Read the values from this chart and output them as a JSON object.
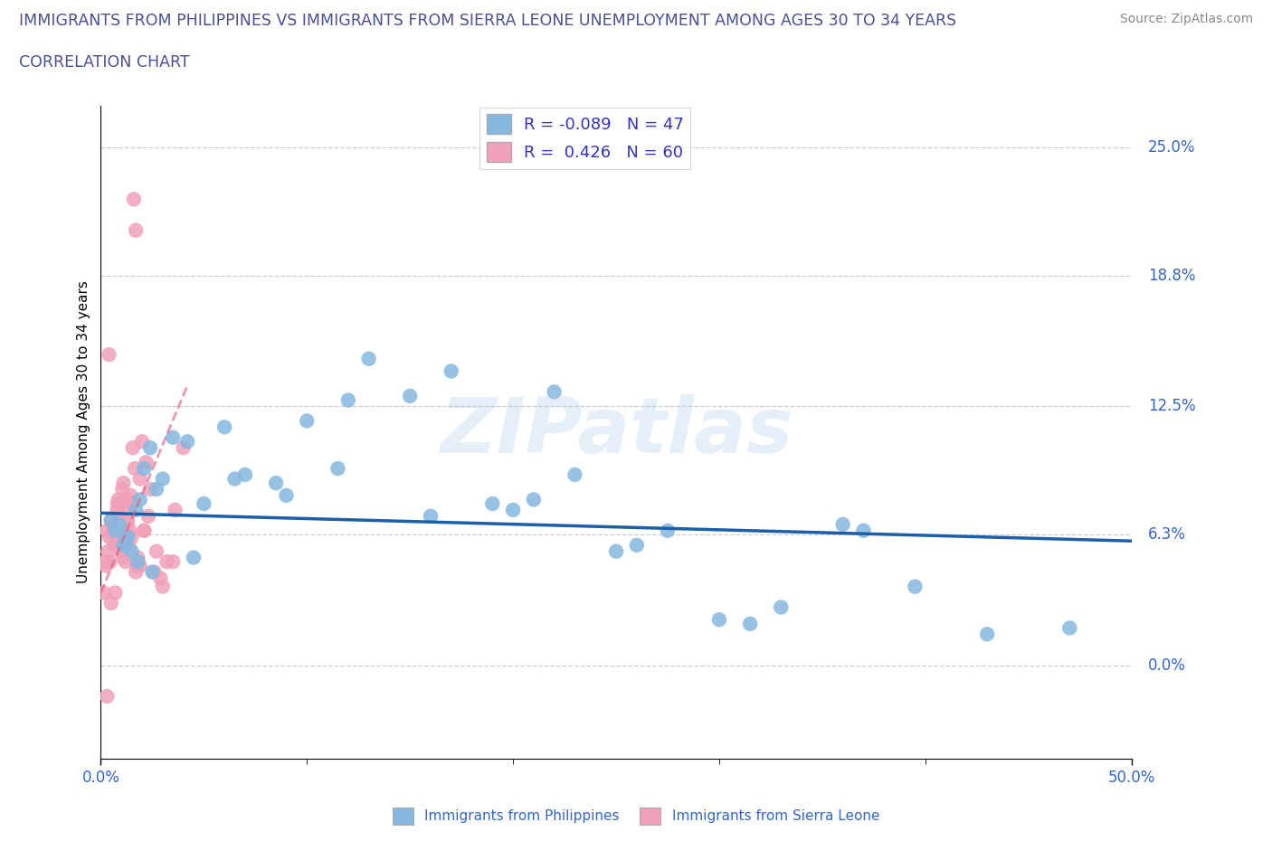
{
  "title_line1": "IMMIGRANTS FROM PHILIPPINES VS IMMIGRANTS FROM SIERRA LEONE UNEMPLOYMENT AMONG AGES 30 TO 34 YEARS",
  "title_line2": "CORRELATION CHART",
  "title_color": "#4a5090",
  "source_text": "Source: ZipAtlas.com",
  "yaxis_labels": [
    "0.0%",
    "6.3%",
    "12.5%",
    "18.8%",
    "25.0%"
  ],
  "yaxis_values": [
    0.0,
    6.3,
    12.5,
    18.8,
    25.0
  ],
  "xmin": 0.0,
  "xmax": 50.0,
  "ymin": -4.5,
  "ymax": 27.0,
  "ylabel": "Unemployment Among Ages 30 to 34 years",
  "legend_label1": "Immigrants from Philippines",
  "legend_label2": "Immigrants from Sierra Leone",
  "r1": -0.089,
  "n1": 47,
  "r2": 0.426,
  "n2": 60,
  "color_blue": "#85b8e0",
  "color_pink": "#f0a0b8",
  "color_blue_line": "#1a5fa8",
  "color_pink_line": "#e06080",
  "watermark": "ZIPatlas",
  "philippines_x": [
    0.5,
    0.7,
    0.9,
    1.1,
    1.3,
    1.5,
    1.7,
    1.9,
    2.1,
    2.4,
    2.7,
    3.0,
    3.5,
    4.2,
    5.0,
    6.0,
    7.0,
    8.5,
    10.0,
    11.5,
    13.0,
    15.0,
    17.0,
    19.0,
    21.0,
    23.0,
    25.0,
    27.5,
    30.0,
    33.0,
    36.0,
    39.5,
    43.0,
    47.0,
    1.2,
    1.8,
    2.5,
    4.5,
    6.5,
    9.0,
    12.0,
    16.0,
    20.0,
    26.0,
    31.5,
    37.0,
    22.0
  ],
  "philippines_y": [
    7.0,
    6.5,
    6.8,
    5.8,
    6.2,
    5.5,
    7.5,
    8.0,
    9.5,
    10.5,
    8.5,
    9.0,
    11.0,
    10.8,
    7.8,
    11.5,
    9.2,
    8.8,
    11.8,
    9.5,
    14.8,
    13.0,
    14.2,
    7.8,
    8.0,
    9.2,
    5.5,
    6.5,
    2.2,
    2.8,
    6.8,
    3.8,
    1.5,
    1.8,
    6.0,
    5.0,
    4.5,
    5.2,
    9.0,
    8.2,
    12.8,
    7.2,
    7.5,
    5.8,
    2.0,
    6.5,
    13.2
  ],
  "sierraleone_x": [
    0.15,
    0.2,
    0.25,
    0.3,
    0.35,
    0.4,
    0.45,
    0.5,
    0.55,
    0.6,
    0.65,
    0.7,
    0.75,
    0.8,
    0.85,
    0.9,
    0.95,
    1.0,
    1.05,
    1.1,
    1.15,
    1.2,
    1.25,
    1.3,
    1.35,
    1.4,
    1.45,
    1.5,
    1.55,
    1.6,
    1.65,
    1.7,
    1.75,
    1.8,
    1.9,
    2.0,
    2.1,
    2.2,
    2.4,
    2.6,
    2.9,
    3.2,
    3.6,
    4.0,
    0.3,
    0.5,
    0.7,
    0.9,
    1.1,
    1.3,
    1.5,
    1.7,
    1.9,
    2.1,
    2.3,
    2.7,
    3.0,
    3.5,
    0.4,
    0.8
  ],
  "sierraleone_y": [
    3.5,
    5.0,
    4.8,
    6.5,
    5.5,
    6.2,
    5.0,
    7.0,
    6.8,
    6.5,
    5.8,
    7.2,
    6.0,
    7.5,
    8.0,
    6.2,
    7.8,
    5.5,
    8.5,
    8.8,
    7.5,
    5.0,
    8.0,
    7.0,
    5.8,
    6.5,
    8.2,
    7.8,
    10.5,
    22.5,
    9.5,
    21.0,
    4.8,
    5.2,
    9.0,
    10.8,
    6.5,
    9.8,
    8.5,
    4.5,
    4.2,
    5.0,
    7.5,
    10.5,
    -1.5,
    3.0,
    3.5,
    5.8,
    5.2,
    6.8,
    6.2,
    4.5,
    4.8,
    6.5,
    7.2,
    5.5,
    3.8,
    5.0,
    15.0,
    7.8
  ],
  "blue_trend_x0": 0.0,
  "blue_trend_y0": 7.35,
  "blue_trend_x1": 50.0,
  "blue_trend_y1": 6.0,
  "pink_trend_x0": 0.0,
  "pink_trend_y0": 3.5,
  "pink_trend_x1": 4.2,
  "pink_trend_y1": 13.5
}
